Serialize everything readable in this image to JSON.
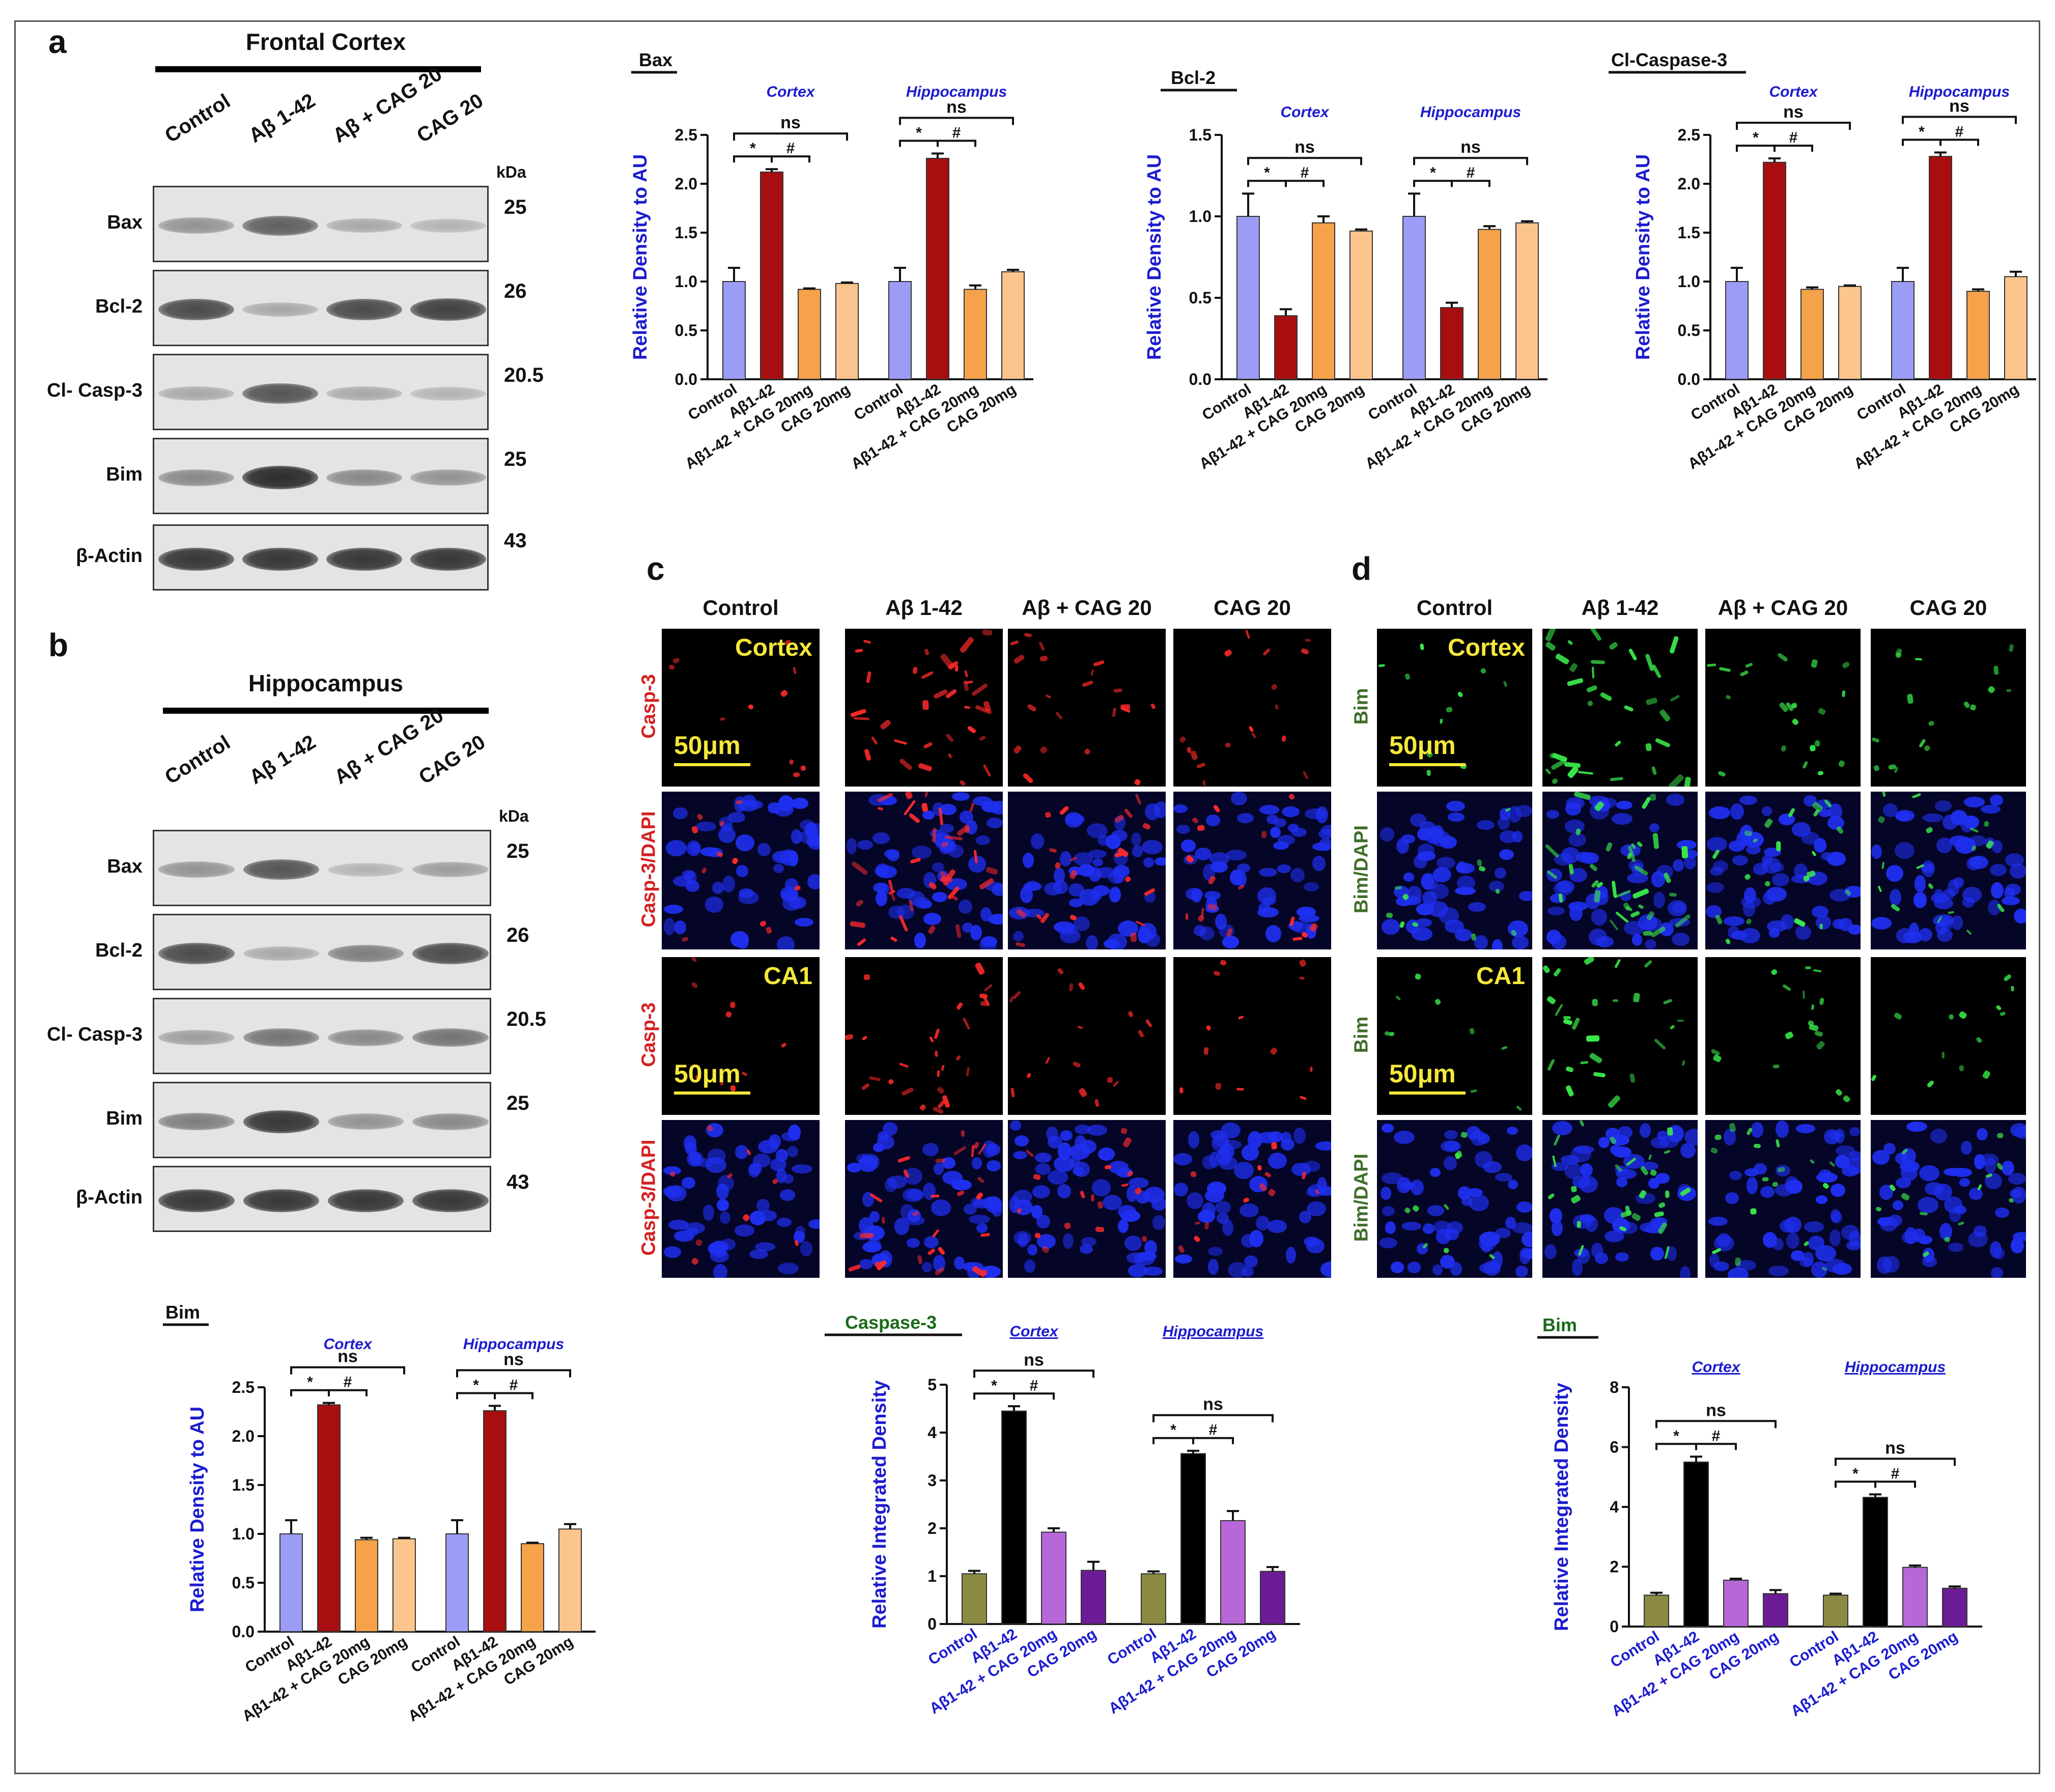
{
  "panels": {
    "a": "a",
    "b": "b",
    "c": "c",
    "d": "d"
  },
  "blots": [
    {
      "title": "Frontal Cortex",
      "lanes": [
        "Control",
        "Aβ 1-42",
        "Aβ + CAG 20",
        "CAG 20"
      ],
      "kda_header": "kDa",
      "rows": [
        {
          "label": "Bax",
          "kda": "25",
          "bands": [
            0.45,
            0.7,
            0.35,
            0.3
          ]
        },
        {
          "label": "Bcl-2",
          "kda": "26",
          "bands": [
            0.8,
            0.35,
            0.8,
            0.85
          ]
        },
        {
          "label": "Cl- Casp-3",
          "kda": "20.5",
          "bands": [
            0.35,
            0.75,
            0.35,
            0.3
          ]
        },
        {
          "label": "Bim",
          "kda": "25",
          "bands": [
            0.5,
            0.95,
            0.5,
            0.45
          ]
        },
        {
          "label": "β-Actin",
          "kda": "43",
          "bands": [
            0.9,
            0.9,
            0.9,
            0.9
          ]
        }
      ]
    },
    {
      "title": "Hippocampus",
      "lanes": [
        "Control",
        "Aβ 1-42",
        "Aβ + CAG 20",
        "CAG 20"
      ],
      "kda_header": "kDa",
      "rows": [
        {
          "label": "Bax",
          "kda": "25",
          "bands": [
            0.45,
            0.75,
            0.3,
            0.4
          ]
        },
        {
          "label": "Bcl-2",
          "kda": "26",
          "bands": [
            0.8,
            0.35,
            0.55,
            0.8
          ]
        },
        {
          "label": "Cl- Casp-3",
          "kda": "20.5",
          "bands": [
            0.4,
            0.6,
            0.5,
            0.6
          ]
        },
        {
          "label": "Bim",
          "kda": "25",
          "bands": [
            0.55,
            0.9,
            0.45,
            0.5
          ]
        },
        {
          "label": "β-Actin",
          "kda": "43",
          "bands": [
            0.9,
            0.9,
            0.9,
            0.9
          ]
        }
      ]
    }
  ],
  "chart_data": [
    {
      "id": "bax",
      "type": "bar",
      "title": "Bax",
      "ylabel": "Relative Density to AU",
      "ylim": [
        0,
        2.5
      ],
      "yticks": [
        "0.0",
        "0.5",
        "1.0",
        "1.5",
        "2.0",
        "2.5"
      ],
      "groups": [
        "Cortex",
        "Hippocampus"
      ],
      "categories": [
        "Control",
        "Aβ1-42",
        "Aβ1-42 + CAG 20mg",
        "CAG 20mg"
      ],
      "colors": [
        "#9b9cf5",
        "#a80e10",
        "#f5a24a",
        "#fbc58d"
      ],
      "series": [
        {
          "name": "Cortex",
          "values": [
            1.0,
            2.12,
            0.92,
            0.98
          ],
          "errors": [
            0.14,
            0.03,
            0.01,
            0.01
          ]
        },
        {
          "name": "Hippocampus",
          "values": [
            1.0,
            2.26,
            0.92,
            1.1
          ],
          "errors": [
            0.14,
            0.05,
            0.04,
            0.02
          ]
        }
      ],
      "annotations": [
        "*",
        "#",
        "ns"
      ]
    },
    {
      "id": "bcl2",
      "type": "bar",
      "title": "Bcl-2",
      "ylabel": "Relative Density to AU",
      "ylim": [
        0,
        1.5
      ],
      "yticks": [
        "0.0",
        "0.5",
        "1.0",
        "1.5"
      ],
      "groups": [
        "Cortex",
        "Hippocampus"
      ],
      "categories": [
        "Control",
        "Aβ1-42",
        "Aβ1-42 + CAG 20mg",
        "CAG 20mg"
      ],
      "colors": [
        "#9b9cf5",
        "#a80e10",
        "#f5a24a",
        "#fbc58d"
      ],
      "series": [
        {
          "name": "Cortex",
          "values": [
            1.0,
            0.39,
            0.96,
            0.91
          ],
          "errors": [
            0.14,
            0.04,
            0.04,
            0.01
          ]
        },
        {
          "name": "Hippocampus",
          "values": [
            1.0,
            0.44,
            0.92,
            0.96
          ],
          "errors": [
            0.14,
            0.03,
            0.02,
            0.01
          ]
        }
      ],
      "annotations": [
        "*",
        "#",
        "ns"
      ]
    },
    {
      "id": "casp3",
      "type": "bar",
      "title": "Cl-Caspase-3",
      "ylabel": "Relative Density to AU",
      "ylim": [
        0,
        2.5
      ],
      "yticks": [
        "0.0",
        "0.5",
        "1.0",
        "1.5",
        "2.0",
        "2.5"
      ],
      "groups": [
        "Cortex",
        "Hippocampus"
      ],
      "categories": [
        "Control",
        "Aβ1-42",
        "Aβ1-42 + CAG 20mg",
        "CAG 20mg"
      ],
      "colors": [
        "#9b9cf5",
        "#a80e10",
        "#f5a24a",
        "#fbc58d"
      ],
      "series": [
        {
          "name": "Cortex",
          "values": [
            1.0,
            2.22,
            0.92,
            0.95
          ],
          "errors": [
            0.14,
            0.04,
            0.02,
            0.01
          ]
        },
        {
          "name": "Hippocampus",
          "values": [
            1.0,
            2.28,
            0.9,
            1.05
          ],
          "errors": [
            0.14,
            0.04,
            0.02,
            0.05
          ]
        }
      ],
      "annotations": [
        "*",
        "#",
        "ns"
      ]
    },
    {
      "id": "bim",
      "type": "bar",
      "title": "Bim",
      "ylabel": "Relative Density to AU",
      "ylim": [
        0,
        2.5
      ],
      "yticks": [
        "0.0",
        "0.5",
        "1.0",
        "1.5",
        "2.0",
        "2.5"
      ],
      "groups": [
        "Cortex",
        "Hippocampus"
      ],
      "categories": [
        "Control",
        "Aβ1-42",
        "Aβ1-42 + CAG 20mg",
        "CAG 20mg"
      ],
      "colors": [
        "#9b9cf5",
        "#a80e10",
        "#f5a24a",
        "#fbc58d"
      ],
      "series": [
        {
          "name": "Cortex",
          "values": [
            1.0,
            2.32,
            0.94,
            0.95
          ],
          "errors": [
            0.14,
            0.02,
            0.02,
            0.01
          ]
        },
        {
          "name": "Hippocampus",
          "values": [
            1.0,
            2.26,
            0.9,
            1.05
          ],
          "errors": [
            0.14,
            0.05,
            0.01,
            0.05
          ]
        }
      ],
      "annotations": [
        "*",
        "#",
        "ns"
      ]
    },
    {
      "id": "casp3if",
      "type": "bar",
      "title": "Caspase-3",
      "ylabel": "Relative Integrated Density",
      "ylim": [
        0,
        5
      ],
      "yticks": [
        "0",
        "1",
        "2",
        "3",
        "4",
        "5"
      ],
      "groups": [
        "Cortex",
        "Hippocampus"
      ],
      "categories": [
        "Control",
        "Aβ1-42",
        "Aβ1-42 + CAG 20mg",
        "CAG 20mg"
      ],
      "colors": [
        "#8b8a42",
        "#000000",
        "#b767d8",
        "#6c1b96"
      ],
      "series": [
        {
          "name": "Cortex",
          "values": [
            1.05,
            4.45,
            1.92,
            1.12
          ],
          "errors": [
            0.06,
            0.1,
            0.08,
            0.18
          ]
        },
        {
          "name": "Hippocampus",
          "values": [
            1.05,
            3.56,
            2.16,
            1.1
          ],
          "errors": [
            0.05,
            0.06,
            0.2,
            0.09
          ]
        }
      ],
      "annotations": [
        "*",
        "#",
        "ns"
      ]
    },
    {
      "id": "bimif",
      "type": "bar",
      "title": "Bim",
      "ylabel": "Relative Integrated Density",
      "ylim": [
        0,
        8
      ],
      "yticks": [
        "0",
        "2",
        "4",
        "6",
        "8"
      ],
      "groups": [
        "Cortex",
        "Hippocampus"
      ],
      "categories": [
        "Control",
        "Aβ1-42",
        "Aβ1-42 + CAG 20mg",
        "CAG 20mg"
      ],
      "colors": [
        "#8b8a42",
        "#000000",
        "#b767d8",
        "#6c1b96"
      ],
      "series": [
        {
          "name": "Cortex",
          "values": [
            1.05,
            5.5,
            1.55,
            1.1
          ],
          "errors": [
            0.08,
            0.18,
            0.05,
            0.12
          ]
        },
        {
          "name": "Hippocampus",
          "values": [
            1.05,
            4.32,
            1.98,
            1.28
          ],
          "errors": [
            0.05,
            0.1,
            0.06,
            0.06
          ]
        }
      ],
      "annotations": [
        "*",
        "#",
        "ns"
      ]
    }
  ],
  "if_panels": [
    {
      "columns": [
        "Control",
        "Aβ 1-42",
        "Aβ + CAG 20",
        "CAG 20"
      ],
      "row_labels": [
        "Casp-3",
        "Casp-3/DAPI",
        "Casp-3",
        "Casp-3/DAPI"
      ],
      "region_labels": [
        "Cortex",
        "CA1"
      ],
      "scale_label": "50μm",
      "signal_color": "#ff2a2a",
      "row_label_color": "#d42020"
    },
    {
      "columns": [
        "Control",
        "Aβ 1-42",
        "Aβ + CAG 20",
        "CAG 20"
      ],
      "row_labels": [
        "Bim",
        "Bim/DAPI",
        "Bim",
        "Bim/DAPI"
      ],
      "region_labels": [
        "Cortex",
        "CA1"
      ],
      "scale_label": "50μm",
      "signal_color": "#39e84a",
      "row_label_color": "#3f6e2a"
    }
  ]
}
